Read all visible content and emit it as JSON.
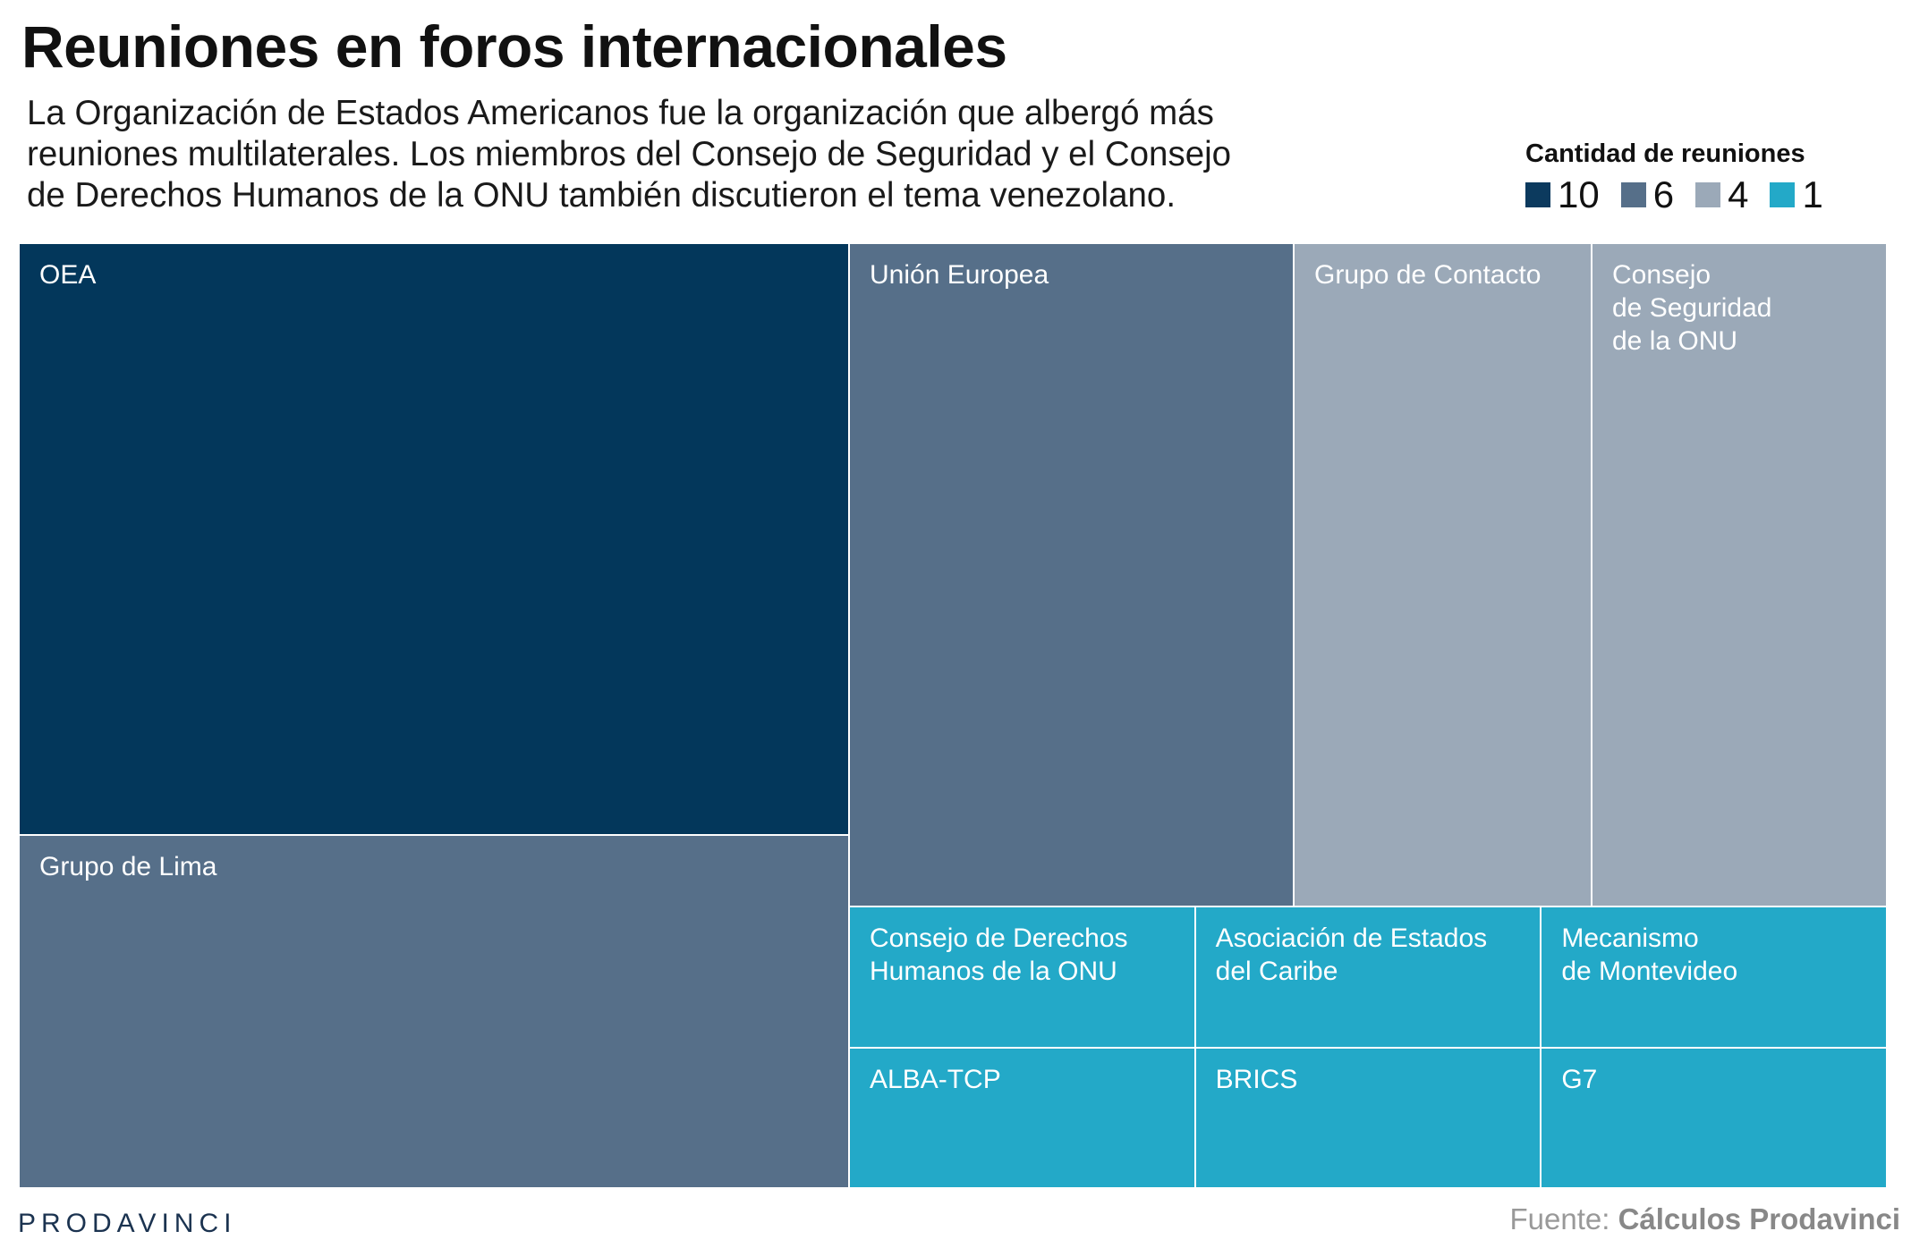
{
  "header": {
    "title": "Reuniones en foros internacionales",
    "subtitle_lines": [
      "La Organización de Estados Americanos fue la organización que albergó más",
      "reuniones multilaterales. Los miembros del Consejo de Seguridad y el Consejo",
      "de Derechos Humanos de la ONU también discutieron el tema venezolano."
    ]
  },
  "legend": {
    "title": "Cantidad de reuniones",
    "items": [
      {
        "label": "10",
        "color": "#0c3a5e"
      },
      {
        "label": "6",
        "color": "#566f89"
      },
      {
        "label": "4",
        "color": "#9ba9b8"
      },
      {
        "label": "1",
        "color": "#23a9c8"
      }
    ]
  },
  "chart_data": {
    "type": "treemap",
    "title": "Reuniones en foros internacionales",
    "value_label": "Cantidad de reuniones",
    "items": [
      {
        "name": "OEA",
        "label": "OEA",
        "value": 10,
        "color": "#03375b"
      },
      {
        "name": "Grupo de Lima",
        "label": "Grupo de Lima",
        "value": 6,
        "color": "#566f89"
      },
      {
        "name": "Unión Europea",
        "label": "Unión Europea",
        "value": 6,
        "color": "#566f89"
      },
      {
        "name": "Grupo de Contacto",
        "label": "Grupo de Contacto",
        "value": 4,
        "color": "#9ba9b8"
      },
      {
        "name": "Consejo de Seguridad de la ONU",
        "label": "Consejo\nde Seguridad\nde la ONU",
        "value": 4,
        "color": "#9ba9b8"
      },
      {
        "name": "Consejo de Derechos Humanos de la ONU",
        "label": "Consejo de Derechos\nHumanos de la ONU",
        "value": 1,
        "color": "#23a9c8"
      },
      {
        "name": "Asociación de Estados del Caribe",
        "label": "Asociación de Estados\ndel Caribe",
        "value": 1,
        "color": "#23a9c8"
      },
      {
        "name": "Mecanismo de Montevideo",
        "label": "Mecanismo\nde Montevideo",
        "value": 1,
        "color": "#23a9c8"
      },
      {
        "name": "ALBA-TCP",
        "label": "ALBA-TCP",
        "value": 1,
        "color": "#23a9c8"
      },
      {
        "name": "BRICS",
        "label": "BRICS",
        "value": 1,
        "color": "#23a9c8"
      },
      {
        "name": "G7",
        "label": "G7",
        "value": 1,
        "color": "#23a9c8"
      }
    ]
  },
  "footer": {
    "brand": "PRODAVINCI",
    "source_prefix": "Fuente: ",
    "source_name": "Cálculos Prodavinci"
  }
}
